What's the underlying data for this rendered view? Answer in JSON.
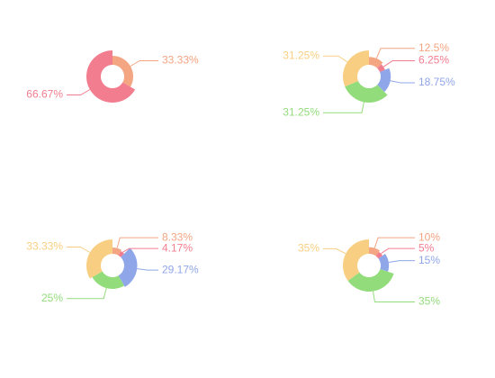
{
  "chart_data": [
    {
      "type": "pie",
      "rose": true,
      "values": [
        33.33,
        66.67
      ],
      "value_labels": [
        "33.33%",
        "66.67%"
      ],
      "colors": [
        "#f4a582",
        "#f27d8f"
      ]
    },
    {
      "type": "pie",
      "rose": true,
      "values": [
        12.5,
        6.25,
        18.75,
        31.25,
        31.25
      ],
      "value_labels": [
        "12.5%",
        "6.25%",
        "18.75%",
        "31.25%",
        "31.25%"
      ],
      "colors": [
        "#f4a582",
        "#f27d8f",
        "#8fa6e8",
        "#93dc7c",
        "#f8cf82"
      ]
    },
    {
      "type": "pie",
      "rose": true,
      "values": [
        8.33,
        4.17,
        29.17,
        25,
        33.33
      ],
      "value_labels": [
        "8.33%",
        "4.17%",
        "29.17%",
        "25%",
        "33.33%"
      ],
      "colors": [
        "#f4a582",
        "#f27d8f",
        "#8fa6e8",
        "#93dc7c",
        "#f8cf82"
      ]
    },
    {
      "type": "pie",
      "rose": true,
      "values": [
        10,
        5,
        15,
        35,
        35
      ],
      "value_labels": [
        "10%",
        "5%",
        "15%",
        "35%",
        "35%"
      ],
      "colors": [
        "#f4a582",
        "#f27d8f",
        "#8fa6e8",
        "#93dc7c",
        "#f8cf82"
      ]
    }
  ]
}
